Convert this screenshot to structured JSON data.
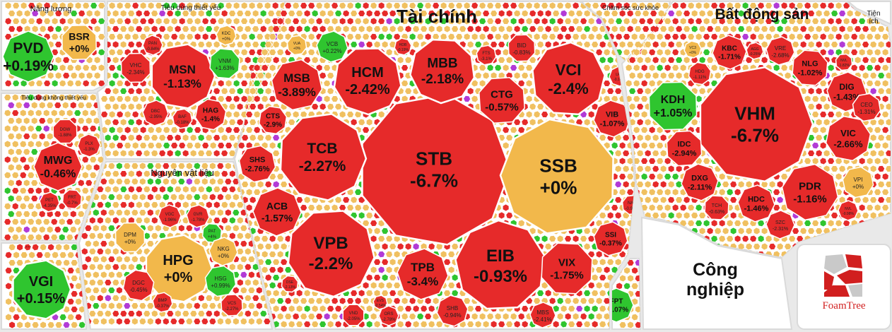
{
  "colors": {
    "down": "#e62a2a",
    "down_border": "#b81818",
    "up": "#2fc52f",
    "flat": "#f2b84b",
    "ceiling": "#b23ad6",
    "panel": "#ffffff",
    "filler": "#f0c060"
  },
  "logo": {
    "text": "FoamTree"
  },
  "chart_data": {
    "type": "treemap",
    "value_unit": "%",
    "sectors": [
      {
        "id": "energy",
        "name": "Năng lượng",
        "tiles": [
          {
            "ticker": "PVD",
            "change": "+0.19%",
            "value": 0.19
          },
          {
            "ticker": "BSR",
            "change": "+0%",
            "value": 0
          }
        ]
      },
      {
        "id": "staples",
        "name": "Tiêu dùng thiết yếu",
        "tiles": [
          {
            "ticker": "MSN",
            "change": "-1.13%",
            "value": -1.13
          },
          {
            "ticker": "VHC",
            "change": "-2.34%",
            "value": -2.34
          },
          {
            "ticker": "PAN",
            "change": "-0.84%",
            "value": -0.84
          },
          {
            "ticker": "KDC",
            "change": "+0%",
            "value": 0
          },
          {
            "ticker": "VNM",
            "change": "+1.63%",
            "value": 1.63
          },
          {
            "ticker": "DBC",
            "change": "-2.95%",
            "value": -2.95
          },
          {
            "ticker": "BAF",
            "change": "-0.18%",
            "value": -0.18
          },
          {
            "ticker": "HAG",
            "change": "-1.4%",
            "value": -1.4
          }
        ]
      },
      {
        "id": "discretionary",
        "name": "Tiêu dùng không thiết yếu",
        "tiles": [
          {
            "ticker": "MWG",
            "change": "-0.46%",
            "value": -0.46
          },
          {
            "ticker": "DGW",
            "change": "-1.88%",
            "value": -1.88
          },
          {
            "ticker": "PLX",
            "change": "-1.3%",
            "value": -1.3
          },
          {
            "ticker": "PET",
            "change": "-4.35%",
            "value": -4.35
          },
          {
            "ticker": "FRT",
            "change": "-0.7%",
            "value": -0.7
          }
        ]
      },
      {
        "id": "materials",
        "name": "Nguyên vật liệu",
        "tiles": [
          {
            "ticker": "HPG",
            "change": "+0%",
            "value": 0
          },
          {
            "ticker": "DPM",
            "change": "+0%",
            "value": 0
          },
          {
            "ticker": "VGC",
            "change": "-1.96%",
            "value": -1.96
          },
          {
            "ticker": "GVR",
            "change": "-1.78%",
            "value": -1.78
          },
          {
            "ticker": "PAT",
            "change": "+4%",
            "value": 4
          },
          {
            "ticker": "NKG",
            "change": "+0%",
            "value": 0
          },
          {
            "ticker": "HSG",
            "change": "+0.99%",
            "value": 0.99
          },
          {
            "ticker": "DGC",
            "change": "-0.45%",
            "value": -0.45
          },
          {
            "ticker": "BMP",
            "change": "-0.37%",
            "value": -0.37
          },
          {
            "ticker": "VCS",
            "change": "-2.27%",
            "value": -2.27
          }
        ]
      },
      {
        "id": "unknown",
        "name": "...",
        "tiles": [
          {
            "ticker": "VGI",
            "change": "+0.15%",
            "value": 0.15
          }
        ]
      },
      {
        "id": "finance",
        "name": "Tài chính",
        "tiles": [
          {
            "ticker": "STB",
            "change": "-6.7%",
            "value": -6.7
          },
          {
            "ticker": "SSB",
            "change": "+0%",
            "value": 0
          },
          {
            "ticker": "TCB",
            "change": "-2.27%",
            "value": -2.27
          },
          {
            "ticker": "VPB",
            "change": "-2.2%",
            "value": -2.2
          },
          {
            "ticker": "EIB",
            "change": "-0.93%",
            "value": -0.93
          },
          {
            "ticker": "HCM",
            "change": "-2.42%",
            "value": -2.42
          },
          {
            "ticker": "MBB",
            "change": "-2.18%",
            "value": -2.18
          },
          {
            "ticker": "VCI",
            "change": "-2.4%",
            "value": -2.4
          },
          {
            "ticker": "MSB",
            "change": "-3.89%",
            "value": -3.89
          },
          {
            "ticker": "CTG",
            "change": "-0.57%",
            "value": -0.57
          },
          {
            "ticker": "VIB",
            "change": "-1.07%",
            "value": -1.07
          },
          {
            "ticker": "TPB",
            "change": "-3.4%",
            "value": -3.4
          },
          {
            "ticker": "VIX",
            "change": "-1.75%",
            "value": -1.75
          },
          {
            "ticker": "ACB",
            "change": "-1.57%",
            "value": -1.57
          },
          {
            "ticker": "SHS",
            "change": "-2.76%",
            "value": -2.76
          },
          {
            "ticker": "CTS",
            "change": "-2.9%",
            "value": -2.9
          },
          {
            "ticker": "SSI",
            "change": "-0.37%",
            "value": -0.37
          },
          {
            "ticker": "NAB",
            "change": "-0.95%",
            "value": -0.95
          },
          {
            "ticker": "SHB",
            "change": "-0.94%",
            "value": -0.94
          },
          {
            "ticker": "MBS",
            "change": "-2.41%",
            "value": -2.41
          },
          {
            "ticker": "VND",
            "change": "-2.05%",
            "value": -2.05
          },
          {
            "ticker": "ORS",
            "change": "-2.78%",
            "value": -2.78
          },
          {
            "ticker": "EVS",
            "change": "-2.54%",
            "value": -2.54
          },
          {
            "ticker": "DSE",
            "change": "-2.13%",
            "value": -2.13
          },
          {
            "ticker": "VCB",
            "change": "+0.22%",
            "value": 0.22
          },
          {
            "ticker": "VUA",
            "change": "+0%",
            "value": 0
          },
          {
            "ticker": "HDB",
            "change": "-0.19%",
            "value": -0.19
          },
          {
            "ticker": "FTS",
            "change": "-3.1%",
            "value": -3.1
          },
          {
            "ticker": "BID",
            "change": "-0.83%",
            "value": -0.83
          },
          {
            "ticker": "LPB",
            "change": "-0.16%",
            "value": -0.16
          }
        ]
      },
      {
        "id": "healthcare",
        "name": "Chăm sóc sức khỏe",
        "tiles": [
          {
            "ticker": "FPT",
            "change": "+0.07%",
            "value": 0.07
          }
        ]
      },
      {
        "id": "realestate",
        "name": "Bất động sản",
        "tiles": [
          {
            "ticker": "VHM",
            "change": "-6.7%",
            "value": -6.7
          },
          {
            "ticker": "KDH",
            "change": "+1.05%",
            "value": 1.05
          },
          {
            "ticker": "KBC",
            "change": "-1.71%",
            "value": -1.71
          },
          {
            "ticker": "VRE",
            "change": "-2.68%",
            "value": -2.68
          },
          {
            "ticker": "NLG",
            "change": "-1.02%",
            "value": -1.02
          },
          {
            "ticker": "DIG",
            "change": "-1.43%",
            "value": -1.43
          },
          {
            "ticker": "CEO",
            "change": "-1.31%",
            "value": -1.31
          },
          {
            "ticker": "VIC",
            "change": "-2.66%",
            "value": -2.66
          },
          {
            "ticker": "PDR",
            "change": "-1.16%",
            "value": -1.16
          },
          {
            "ticker": "IDC",
            "change": "-2.94%",
            "value": -2.94
          },
          {
            "ticker": "DXG",
            "change": "-2.11%",
            "value": -2.11
          },
          {
            "ticker": "HDC",
            "change": "-1.46%",
            "value": -1.46
          },
          {
            "ticker": "TCH",
            "change": "-0.63%",
            "value": -0.63
          },
          {
            "ticker": "SZC",
            "change": "-2.31%",
            "value": -2.31
          },
          {
            "ticker": "VPI",
            "change": "+0%",
            "value": 0
          },
          {
            "ticker": "HDG",
            "change": "-1.11%",
            "value": -1.11
          },
          {
            "ticker": "AGG",
            "change": "-0.25%",
            "value": -0.25
          },
          {
            "ticker": "NVL",
            "change": "-1.82%",
            "value": -1.82
          },
          {
            "ticker": "VC3",
            "change": "+0%",
            "value": 0
          },
          {
            "ticker": "NVL",
            "change": "-0.98%",
            "value": -0.98
          }
        ]
      },
      {
        "id": "industrials",
        "name": "Công nghiệp",
        "tiles": []
      },
      {
        "id": "utilities",
        "name": "Tiện ích",
        "tiles": []
      }
    ]
  }
}
